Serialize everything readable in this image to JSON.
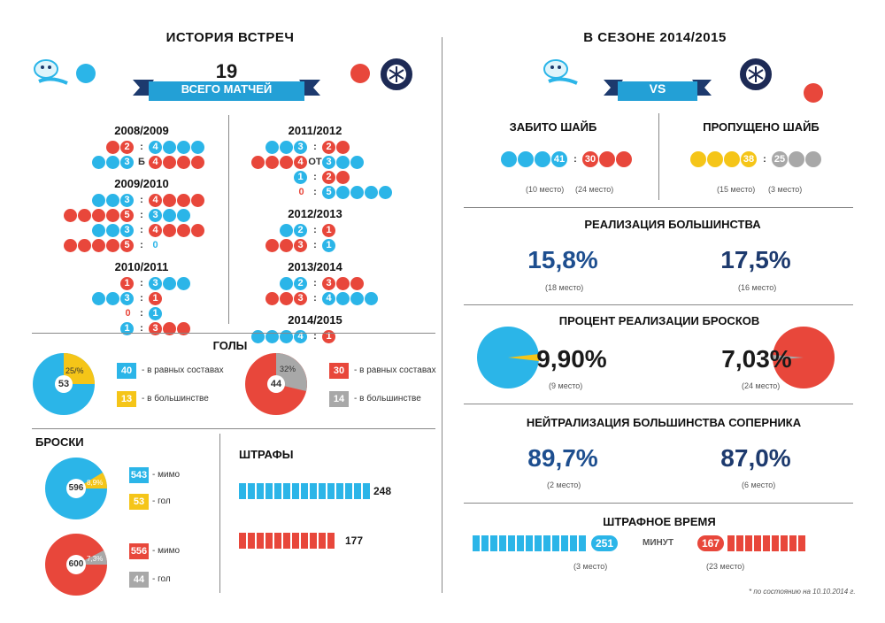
{
  "colors": {
    "blue": "#2bb5e8",
    "red": "#e8473b",
    "yellow": "#f5c518",
    "grey": "#a8a8a8",
    "navy": "#1d3a6e"
  },
  "left": {
    "title": "ИСТОРИЯ ВСТРЕЧ",
    "total_number": "19",
    "total_label": "ВСЕГО МАТЧЕЙ",
    "seasons": [
      {
        "name": "2008/2009",
        "games": [
          {
            "a": "2",
            "sep": ":",
            "b": "4"
          },
          {
            "a": "3",
            "sep": "Б",
            "b": "4"
          }
        ]
      },
      {
        "name": "2009/2010",
        "games": [
          {
            "a": "3",
            "sep": ":",
            "b": "4"
          },
          {
            "a": "5",
            "sep": ":",
            "b": "3"
          },
          {
            "a": "3",
            "sep": ":",
            "b": "4"
          },
          {
            "a": "5",
            "sep": ":",
            "b": "0"
          }
        ]
      },
      {
        "name": "2010/2011",
        "games": [
          {
            "a": "1",
            "sep": ":",
            "b": "3"
          },
          {
            "a": "3",
            "sep": ":",
            "b": "1"
          },
          {
            "a": "0",
            "sep": ":",
            "b": "1"
          },
          {
            "a": "1",
            "sep": ":",
            "b": "3"
          }
        ]
      },
      {
        "name": "2011/2012",
        "games": [
          {
            "a": "3",
            "sep": ":",
            "b": "2"
          },
          {
            "a": "4",
            "sep": "ОТ",
            "b": "3"
          },
          {
            "a": "1",
            "sep": ":",
            "b": "2"
          },
          {
            "a": "0",
            "sep": ":",
            "b": "5"
          }
        ]
      },
      {
        "name": "2012/2013",
        "games": [
          {
            "a": "2",
            "sep": ":",
            "b": "1"
          },
          {
            "a": "3",
            "sep": ":",
            "b": "1"
          }
        ]
      },
      {
        "name": "2013/2014",
        "games": [
          {
            "a": "2",
            "sep": ":",
            "b": "3"
          },
          {
            "a": "3",
            "sep": ":",
            "b": "4"
          }
        ]
      },
      {
        "name": "2014/2015",
        "games": [
          {
            "a": "4",
            "sep": ":",
            "b": "1"
          }
        ]
      }
    ],
    "goals": {
      "title": "ГОЛЫ",
      "team1": {
        "total": "53",
        "pct": "25/%",
        "even_value": "40",
        "even_label": "- в равных составах",
        "pp_value": "13",
        "pp_label": "- в большинстве"
      },
      "team2": {
        "total": "44",
        "pct": "32%",
        "even_value": "30",
        "even_label": "- в равных составах",
        "pp_value": "14",
        "pp_label": "- в большинстве"
      }
    },
    "shots": {
      "title": "БРОСКИ",
      "team1": {
        "total": "596",
        "pct": "8,9%",
        "miss_value": "543",
        "miss_label": "- мимо",
        "goal_value": "53",
        "goal_label": "- гол"
      },
      "team2": {
        "total": "600",
        "pct": "7,3%",
        "miss_value": "556",
        "miss_label": "- мимо",
        "goal_value": "44",
        "goal_label": "- гол"
      }
    },
    "penalties": {
      "title": "ШТРАФЫ",
      "team1_value": "248",
      "team2_value": "177"
    }
  },
  "right": {
    "title": "В СЕЗОНЕ 2014/2015",
    "vs": "VS",
    "scored": {
      "title": "ЗАБИТО ШАЙБ",
      "team1_value": "41",
      "team2_value": "30",
      "team1_place": "(10 место)",
      "team2_place": "(24 место)"
    },
    "conceded": {
      "title": "ПРОПУЩЕНО ШАЙБ",
      "team1_value": "38",
      "team2_value": "25",
      "team1_place": "(15 место)",
      "team2_place": "(3 место)"
    },
    "powerplay": {
      "title": "РЕАЛИЗАЦИЯ БОЛЬШИНСТВА",
      "team1_value": "15,8%",
      "team2_value": "17,5%",
      "team1_place": "(18 место)",
      "team2_place": "(16 место)"
    },
    "shot_pct": {
      "title": "ПРОЦЕНТ РЕАЛИЗАЦИИ БРОСКОВ",
      "team1_value": "9,90%",
      "team2_value": "7,03%",
      "team1_place": "(9 место)",
      "team2_place": "(24 место)"
    },
    "pk": {
      "title": "НЕЙТРАЛИЗАЦИЯ БОЛЬШИНСТВА СОПЕРНИКА",
      "team1_value": "89,7%",
      "team2_value": "87,0%",
      "team1_place": "(2 место)",
      "team2_place": "(6 место)"
    },
    "pim": {
      "title": "ШТРАФНОЕ ВРЕМЯ",
      "team1_value": "251",
      "team2_value": "167",
      "unit": "МИНУТ",
      "team1_place": "(3 место)",
      "team2_place": "(23 место)"
    },
    "footnote": "* по состоянию на 10.10.2014 г."
  }
}
